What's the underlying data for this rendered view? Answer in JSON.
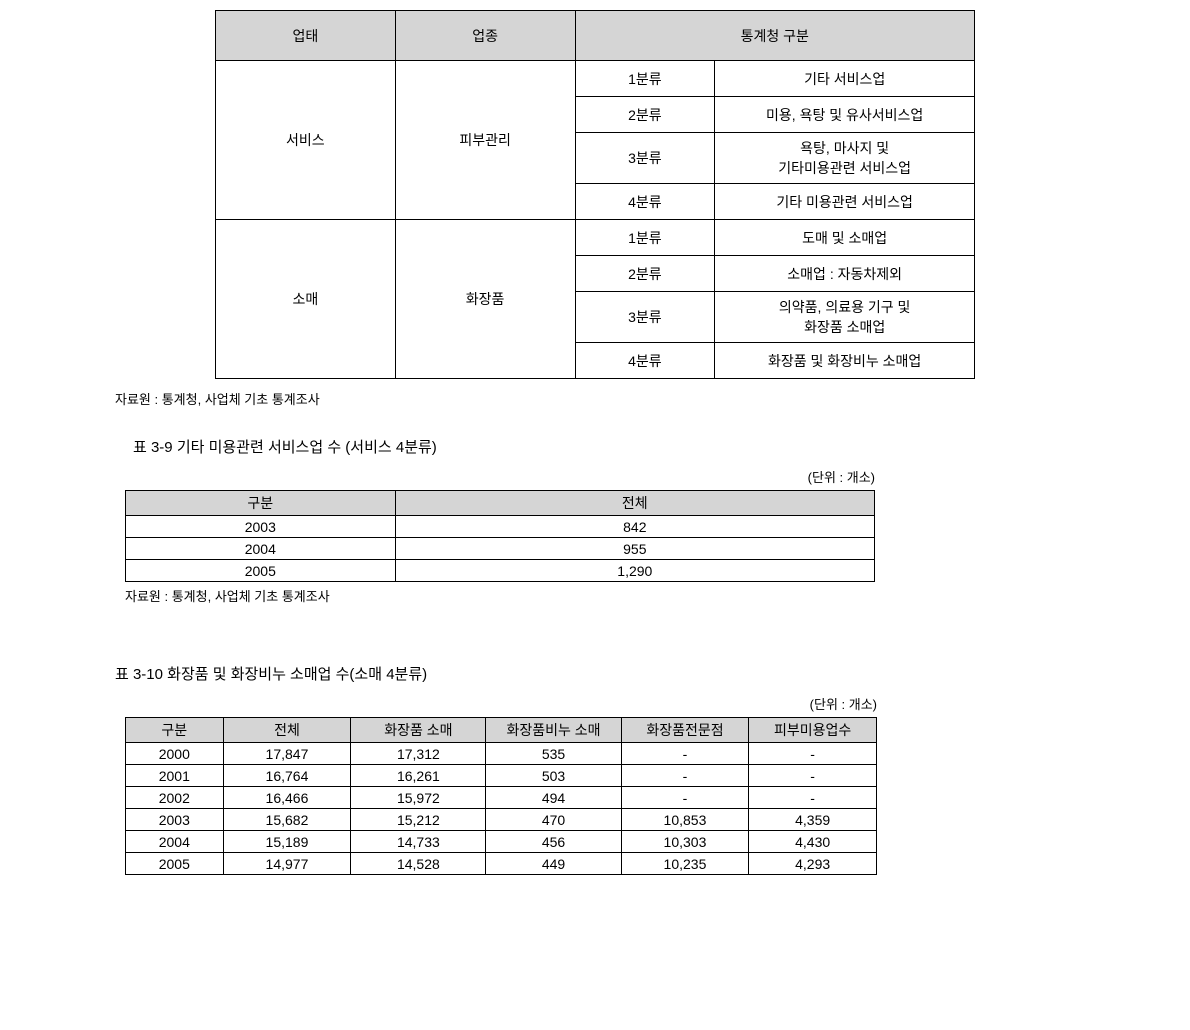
{
  "table1": {
    "headers": {
      "col1": "업태",
      "col2": "업종",
      "col3": "통계청 구분"
    },
    "group1": {
      "cat1": "서비스",
      "cat2": "피부관리",
      "rows": [
        {
          "class": "1분류",
          "desc": "기타 서비스업"
        },
        {
          "class": "2분류",
          "desc": "미용, 욕탕 및 유사서비스업"
        },
        {
          "class": "3분류",
          "desc": "욕탕, 마사지 및\n기타미용관련 서비스업"
        },
        {
          "class": "4분류",
          "desc": "기타 미용관련 서비스업"
        }
      ]
    },
    "group2": {
      "cat1": "소매",
      "cat2": "화장품",
      "rows": [
        {
          "class": "1분류",
          "desc": "도매 및 소매업"
        },
        {
          "class": "2분류",
          "desc": "소매업 : 자동차제외"
        },
        {
          "class": "3분류",
          "desc": "의약품, 의료용 기구 및\n화장품 소매업"
        },
        {
          "class": "4분류",
          "desc": "화장품 및 화장비누 소매업"
        }
      ]
    },
    "source": "자료원 : 통계청, 사업체 기초 통계조사"
  },
  "table2": {
    "caption": "표 3-9 기타 미용관련 서비스업 수 (서비스 4분류)",
    "unit": "(단위 : 개소)",
    "headers": {
      "col1": "구분",
      "col2": "전체"
    },
    "rows": [
      {
        "year": "2003",
        "total": "842"
      },
      {
        "year": "2004",
        "total": "955"
      },
      {
        "year": "2005",
        "total": "1,290"
      }
    ],
    "source": "자료원 : 통계청, 사업체 기초 통계조사"
  },
  "table3": {
    "caption": "표 3-10 화장품 및 화장비누 소매업 수(소매 4분류)",
    "unit": "(단위 : 개소)",
    "headers": {
      "c1": "구분",
      "c2": "전체",
      "c3": "화장품 소매",
      "c4": "화장품비누 소매",
      "c5": "화장품전문점",
      "c6": "피부미용업수"
    },
    "rows": [
      {
        "c1": "2000",
        "c2": "17,847",
        "c3": "17,312",
        "c4": "535",
        "c5": "-",
        "c6": "-"
      },
      {
        "c1": "2001",
        "c2": "16,764",
        "c3": "16,261",
        "c4": "503",
        "c5": "-",
        "c6": "-"
      },
      {
        "c1": "2002",
        "c2": "16,466",
        "c3": "15,972",
        "c4": "494",
        "c5": "-",
        "c6": "-"
      },
      {
        "c1": "2003",
        "c2": "15,682",
        "c3": "15,212",
        "c4": "470",
        "c5": "10,853",
        "c6": "4,359"
      },
      {
        "c1": "2004",
        "c2": "15,189",
        "c3": "14,733",
        "c4": "456",
        "c5": "10,303",
        "c6": "4,430"
      },
      {
        "c1": "2005",
        "c2": "14,977",
        "c3": "14,528",
        "c4": "449",
        "c5": "10,235",
        "c6": "4,293"
      }
    ]
  },
  "style": {
    "header_bg": "#d5d5d5",
    "border_color": "#000000",
    "body_font_size": 14,
    "caption_font_size": 15,
    "source_font_size": 13
  }
}
